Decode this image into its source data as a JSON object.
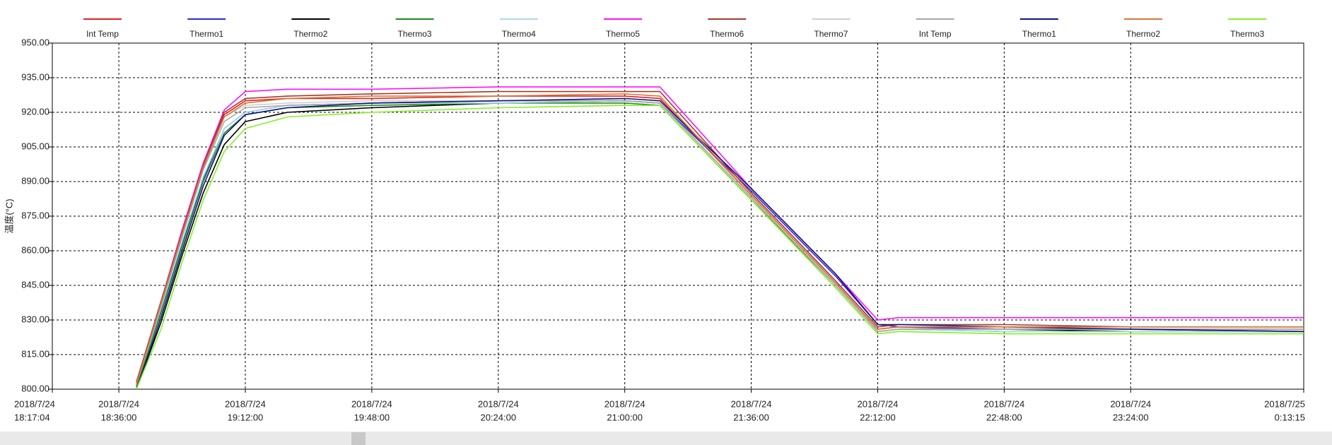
{
  "chart_data": {
    "type": "line",
    "y_label": "温度(°C)",
    "legend": "top",
    "grid": true,
    "x": [
      "2018-07-24T18:41:00",
      "2018-07-24T18:48:00",
      "2018-07-24T18:54:00",
      "2018-07-24T19:00:00",
      "2018-07-24T19:06:00",
      "2018-07-24T19:12:00",
      "2018-07-24T19:24:00",
      "2018-07-24T19:48:00",
      "2018-07-24T20:24:00",
      "2018-07-24T21:00:00",
      "2018-07-24T21:10:00",
      "2018-07-24T21:36:00",
      "2018-07-24T22:00:00",
      "2018-07-24T22:12:00",
      "2018-07-24T22:18:00",
      "2018-07-24T22:48:00",
      "2018-07-24T23:24:00",
      "2018-07-25T00:13:15"
    ],
    "xlim": [
      "2018-07-24T18:17:04",
      "2018-07-25T00:13:15"
    ],
    "xticks": [
      {
        "value": "2018-07-24T18:17:04",
        "label": [
          "2018/7/24",
          "18:17:04"
        ]
      },
      {
        "value": "2018-07-24T18:36:00",
        "label": [
          "2018/7/24",
          "18:36:00"
        ]
      },
      {
        "value": "2018-07-24T19:12:00",
        "label": [
          "2018/7/24",
          "19:12:00"
        ]
      },
      {
        "value": "2018-07-24T19:48:00",
        "label": [
          "2018/7/24",
          "19:48:00"
        ]
      },
      {
        "value": "2018-07-24T20:24:00",
        "label": [
          "2018/7/24",
          "20:24:00"
        ]
      },
      {
        "value": "2018-07-24T21:00:00",
        "label": [
          "2018/7/24",
          "21:00:00"
        ]
      },
      {
        "value": "2018-07-24T21:36:00",
        "label": [
          "2018/7/24",
          "21:36:00"
        ]
      },
      {
        "value": "2018-07-24T22:12:00",
        "label": [
          "2018/7/24",
          "22:12:00"
        ]
      },
      {
        "value": "2018-07-24T22:48:00",
        "label": [
          "2018/7/24",
          "22:48:00"
        ]
      },
      {
        "value": "2018-07-24T23:24:00",
        "label": [
          "2018/7/24",
          "23:24:00"
        ]
      },
      {
        "value": "2018-07-25T00:13:15",
        "label": [
          "2018/7/25",
          "0:13:15"
        ]
      }
    ],
    "ylim": [
      800,
      950
    ],
    "yticks": [
      {
        "value": 800,
        "label": "800.00"
      },
      {
        "value": 815,
        "label": "815.00"
      },
      {
        "value": 830,
        "label": "830.00"
      },
      {
        "value": 845,
        "label": "845.00"
      },
      {
        "value": 860,
        "label": "860.00"
      },
      {
        "value": 875,
        "label": "875.00"
      },
      {
        "value": 890,
        "label": "890.00"
      },
      {
        "value": 905,
        "label": "905.00"
      },
      {
        "value": 920,
        "label": "920.00"
      },
      {
        "value": 935,
        "label": "935.00"
      },
      {
        "value": 950,
        "label": "950.00"
      }
    ],
    "series": [
      {
        "name": "Int Temp",
        "color": "#e02020",
        "values": [
          803,
          838,
          868,
          897,
          919,
          925,
          926,
          926,
          927,
          927,
          926,
          884,
          846,
          826,
          827,
          826,
          826,
          826
        ]
      },
      {
        "name": "Thermo1",
        "color": "#2a2ad8",
        "values": [
          801,
          834,
          863,
          891,
          913,
          920,
          923,
          924,
          925,
          925,
          924,
          886,
          849,
          828,
          827,
          826,
          826,
          825
        ]
      },
      {
        "name": "Thermo2",
        "color": "#000000",
        "values": [
          800,
          829,
          858,
          885,
          906,
          916,
          920,
          922,
          924,
          925,
          924,
          883,
          845,
          825,
          826,
          826,
          825,
          825
        ]
      },
      {
        "name": "Thermo3",
        "color": "#1e8a1e",
        "values": [
          801,
          833,
          862,
          890,
          911,
          919,
          922,
          923,
          924,
          924,
          923,
          882,
          845,
          825,
          826,
          825,
          825,
          825
        ]
      },
      {
        "name": "Thermo4",
        "color": "#a8dce4",
        "values": [
          802,
          835,
          864,
          892,
          913,
          920,
          923,
          924,
          924,
          925,
          924,
          883,
          845,
          825,
          826,
          825,
          825,
          825
        ]
      },
      {
        "name": "Thermo5",
        "color": "#ff10ff",
        "values": [
          803,
          838,
          869,
          898,
          921,
          929,
          930,
          930,
          931,
          931,
          931,
          887,
          850,
          830,
          831,
          831,
          831,
          831
        ]
      },
      {
        "name": "Thermo6",
        "color": "#a33a2a",
        "values": [
          803,
          838,
          868,
          897,
          920,
          926,
          927,
          928,
          929,
          929,
          929,
          885,
          847,
          827,
          828,
          828,
          827,
          827
        ]
      },
      {
        "name": "Thermo7",
        "color": "#d0d0d0",
        "values": [
          802,
          837,
          867,
          896,
          918,
          923,
          924,
          925,
          925,
          925,
          924,
          883,
          845,
          825,
          826,
          826,
          826,
          826
        ]
      },
      {
        "name": "Int Temp",
        "color": "#a8a8a8",
        "values": [
          802,
          836,
          866,
          895,
          916,
          922,
          923,
          924,
          925,
          925,
          924,
          883,
          845,
          825,
          826,
          826,
          826,
          826
        ]
      },
      {
        "name": "Thermo1",
        "color": "#141480",
        "values": [
          800,
          831,
          860,
          888,
          910,
          919,
          922,
          924,
          925,
          926,
          925,
          887,
          850,
          828,
          828,
          827,
          826,
          825
        ]
      },
      {
        "name": "Thermo2",
        "color": "#d27838",
        "values": [
          802,
          837,
          867,
          896,
          918,
          924,
          926,
          927,
          927,
          928,
          927,
          884,
          846,
          826,
          827,
          827,
          827,
          827
        ]
      },
      {
        "name": "Thermo3",
        "color": "#84f028",
        "values": [
          800,
          826,
          855,
          882,
          903,
          913,
          918,
          920,
          922,
          923,
          923,
          882,
          844,
          824,
          825,
          824,
          824,
          824
        ]
      }
    ]
  }
}
